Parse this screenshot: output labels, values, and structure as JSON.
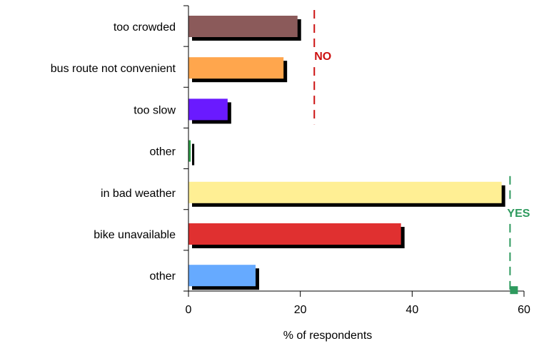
{
  "chart_data": {
    "type": "bar",
    "orientation": "horizontal",
    "title": "",
    "xlabel": "% of respondents",
    "ylabel": "",
    "xlim": [
      0,
      60
    ],
    "xticks": [
      0,
      20,
      40,
      60
    ],
    "grid": false,
    "categories": [
      "too crowded",
      "bus route not convenient",
      "too slow",
      "other",
      "in bad weather",
      "bike unavailable",
      "other"
    ],
    "values": [
      19.5,
      17,
      7,
      0.4,
      56,
      38,
      12
    ],
    "colors": [
      "#8b5a5a",
      "#ffa64d",
      "#6a1aff",
      "#33a04d",
      "#ffef94",
      "#e03030",
      "#66aaff"
    ],
    "shadow_color": "#000000",
    "annotations": [
      {
        "text": "NO",
        "color": "#cc1111",
        "x": 22.5,
        "categories": [
          "too crowded",
          "bus route not convenient",
          "too slow"
        ]
      },
      {
        "text": "YES",
        "color": "#2e9a5e",
        "x": 57.5,
        "categories": [
          "in bad weather",
          "bike unavailable",
          "other"
        ]
      }
    ]
  }
}
